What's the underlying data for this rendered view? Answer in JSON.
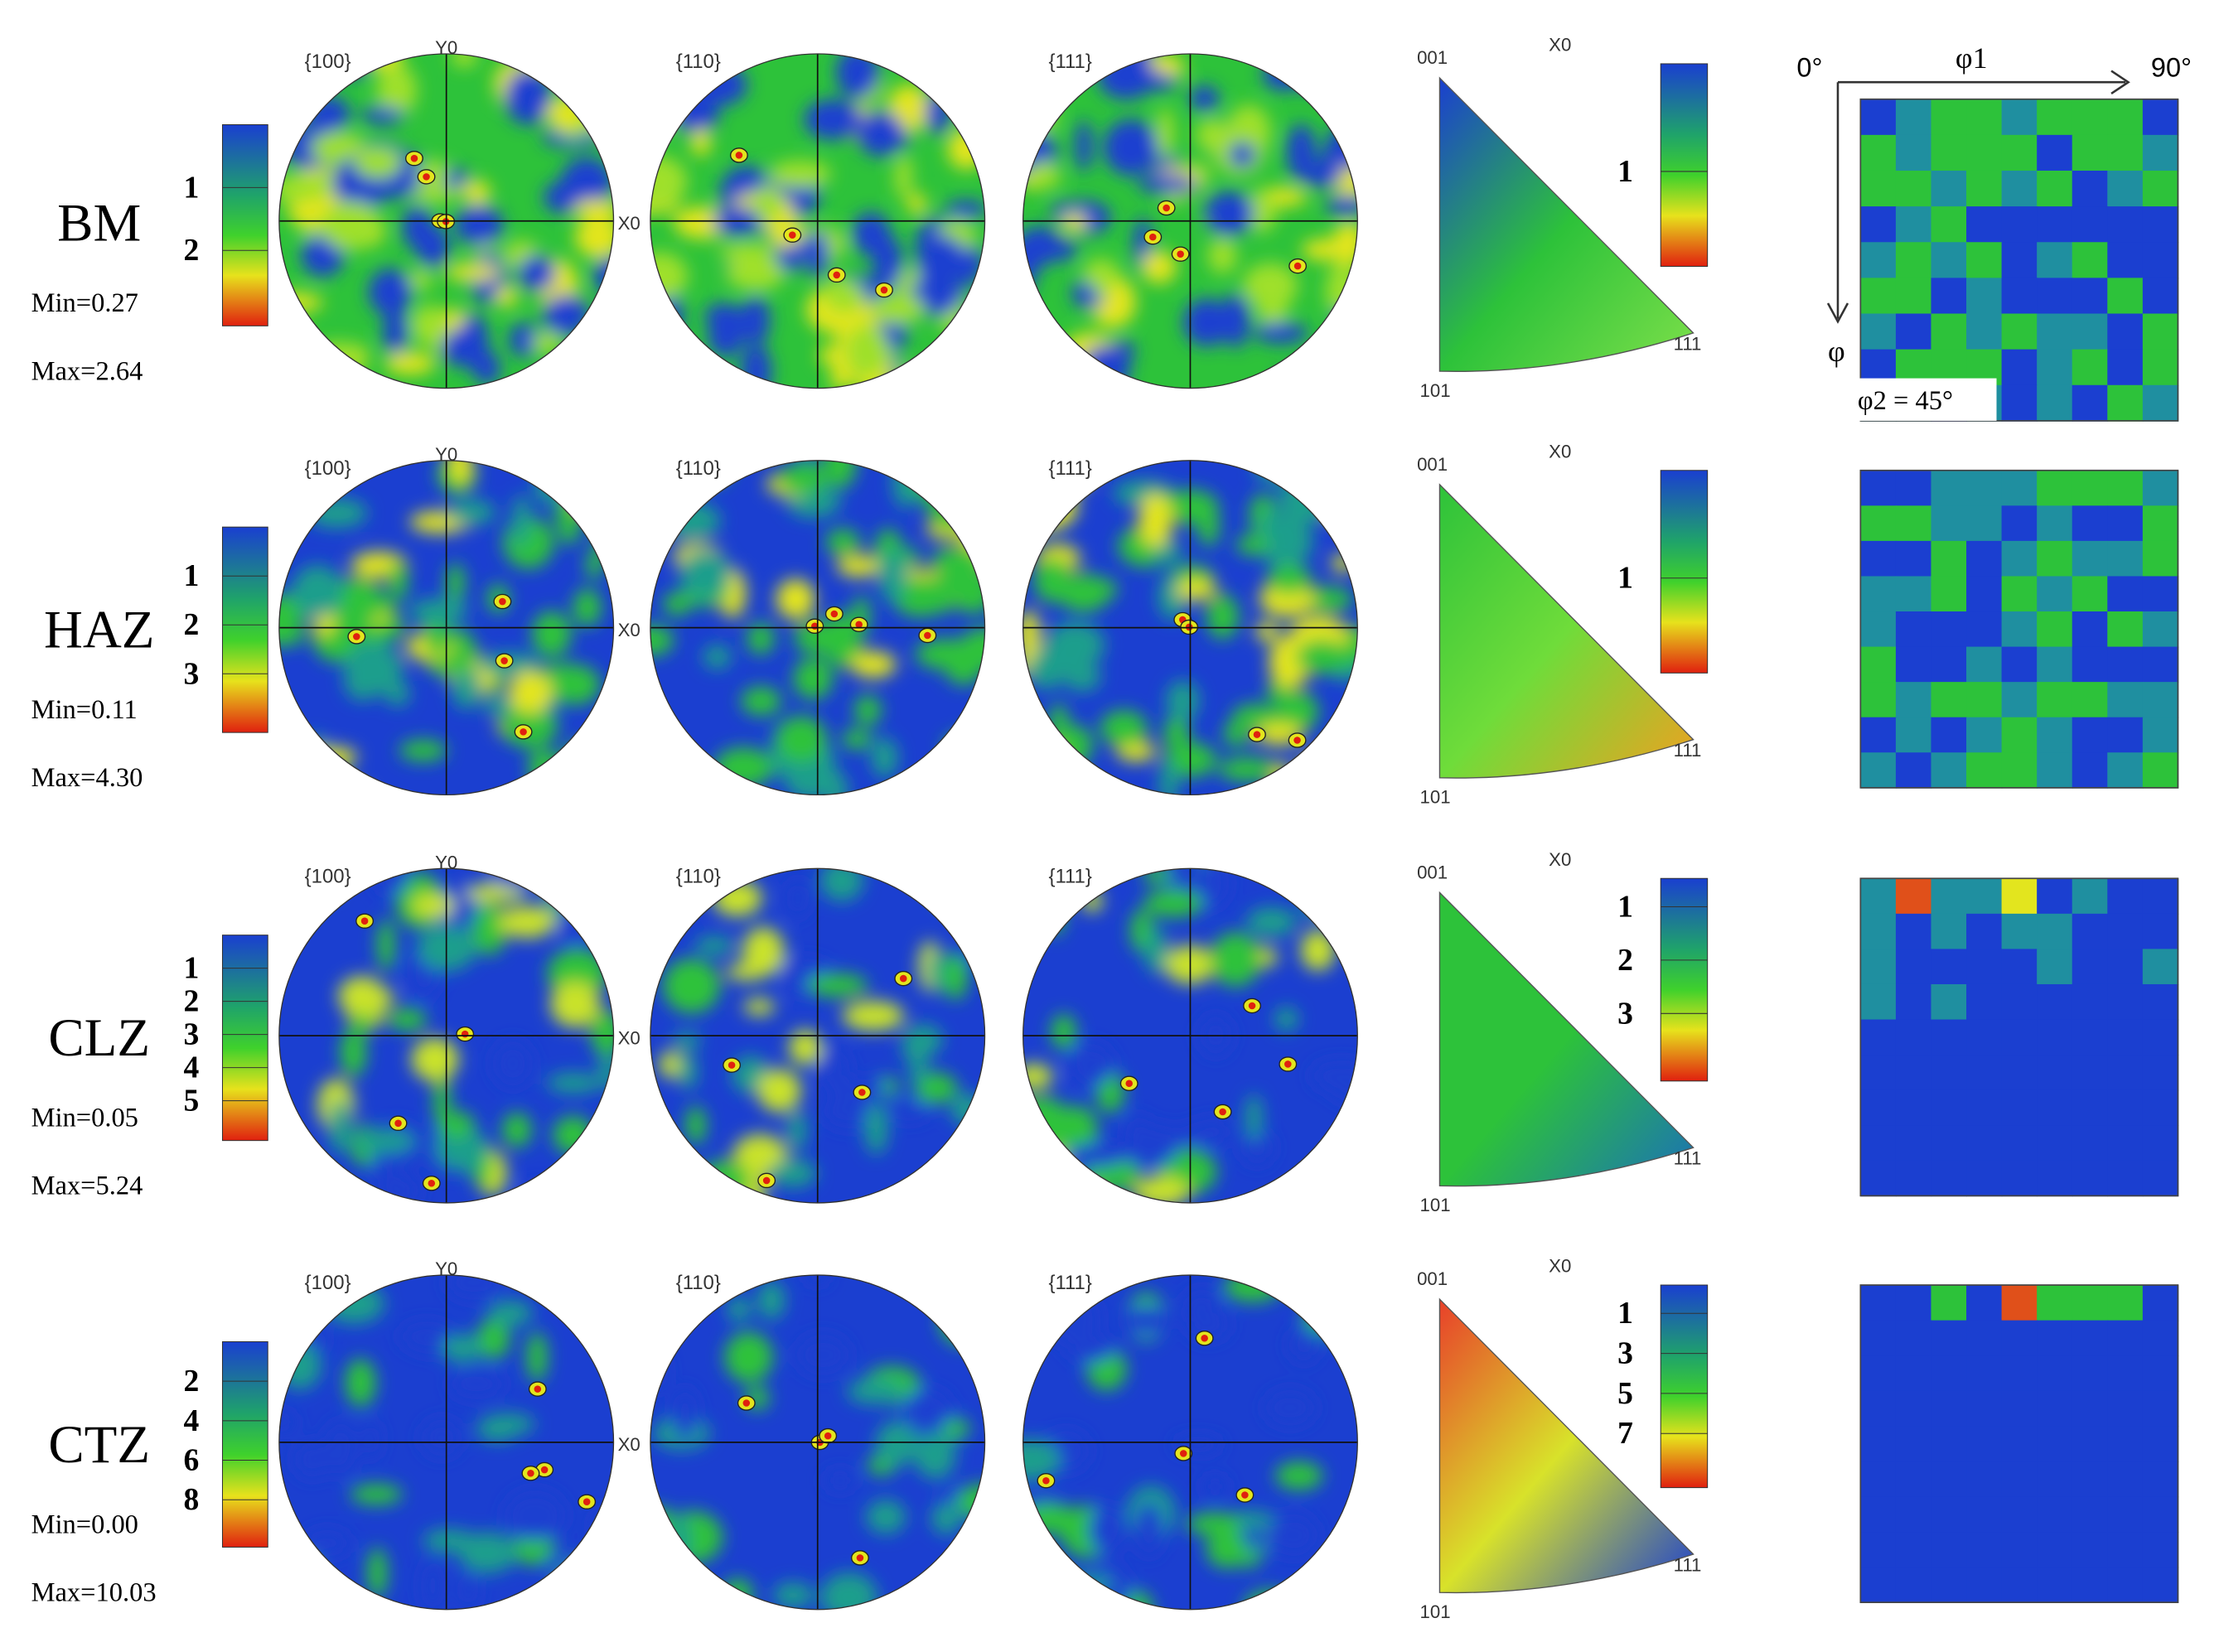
{
  "pole_figure_titles": [
    "{100}",
    "{110}",
    "{111}"
  ],
  "axis_labels": {
    "y0": "Y0",
    "x0": "X0"
  },
  "ipf_labels": {
    "top": "001",
    "bottom": "101",
    "right": "111",
    "x0": "X0"
  },
  "odf_labels": {
    "phi1_start": "0°",
    "phi1": "φ1",
    "phi1_end": "90°",
    "phi": "φ",
    "phi2": "φ2 = 45°"
  },
  "rows": [
    {
      "label": "BM",
      "min": "Min=0.27",
      "max": "Max=2.64",
      "legend_ticks": [
        "1",
        "2"
      ],
      "ipf_ticks": [
        "1"
      ]
    },
    {
      "label": "HAZ",
      "min": "Min=0.11",
      "max": "Max=4.30",
      "legend_ticks": [
        "1",
        "2",
        "3"
      ],
      "ipf_ticks": [
        "1"
      ]
    },
    {
      "label": "CLZ",
      "min": "Min=0.05",
      "max": "Max=5.24",
      "legend_ticks": [
        "1",
        "2",
        "3",
        "4",
        "5"
      ],
      "ipf_ticks": [
        "1",
        "2",
        "3"
      ]
    },
    {
      "label": "CTZ",
      "min": "Min=0.00",
      "max": "Max=10.03",
      "legend_ticks": [
        "2",
        "4",
        "6",
        "8"
      ],
      "ipf_ticks": [
        "1",
        "3",
        "5",
        "7"
      ]
    }
  ]
}
